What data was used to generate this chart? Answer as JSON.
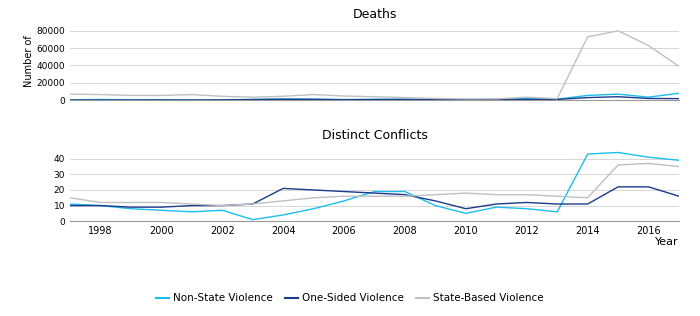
{
  "years": [
    1997,
    1998,
    1999,
    2000,
    2001,
    2002,
    2003,
    2004,
    2005,
    2006,
    2007,
    2008,
    2009,
    2010,
    2011,
    2012,
    2013,
    2014,
    2015,
    2016,
    2017
  ],
  "deaths": {
    "non_state": [
      500,
      800,
      500,
      600,
      400,
      500,
      900,
      1400,
      1200,
      800,
      1000,
      1200,
      800,
      800,
      1000,
      2000,
      1200,
      5500,
      7000,
      3500,
      8000
    ],
    "one_sided": [
      150,
      200,
      150,
      250,
      150,
      350,
      700,
      1100,
      900,
      500,
      700,
      800,
      600,
      400,
      700,
      900,
      900,
      3000,
      4000,
      2000,
      1800
    ],
    "state_based": [
      7000,
      6500,
      5500,
      5500,
      6500,
      4500,
      3500,
      4500,
      6500,
      4800,
      4000,
      3000,
      2000,
      1500,
      1500,
      3500,
      1800,
      73000,
      80000,
      63000,
      39000
    ]
  },
  "conflicts": {
    "non_state": [
      11,
      10,
      8,
      7,
      6,
      7,
      1,
      4,
      8,
      13,
      19,
      19,
      10,
      5,
      9,
      8,
      6,
      43,
      44,
      41,
      39
    ],
    "one_sided": [
      10,
      10,
      9,
      9,
      10,
      10,
      11,
      21,
      20,
      19,
      18,
      17,
      13,
      8,
      11,
      12,
      11,
      11,
      22,
      22,
      16
    ],
    "state_based": [
      15,
      12,
      12,
      12,
      11,
      10,
      11,
      13,
      15,
      16,
      16,
      16,
      17,
      18,
      17,
      17,
      16,
      15,
      36,
      37,
      35
    ]
  },
  "colors": {
    "non_state": "#1ABFED",
    "one_sided": "#1B3A8C",
    "state_based": "#C0C0C0"
  },
  "deaths_title": "Deaths",
  "conflicts_title": "Distinct Conflicts",
  "ylabel_deaths": "Number of",
  "xlabel": "Year",
  "legend_labels": [
    "Non-State Violence",
    "One-Sided Violence",
    "State-Based Violence"
  ],
  "background_color": "#ffffff",
  "grid_color": "#d0d0d0",
  "xticks": [
    1998,
    2000,
    2002,
    2004,
    2006,
    2008,
    2010,
    2012,
    2014,
    2016
  ]
}
